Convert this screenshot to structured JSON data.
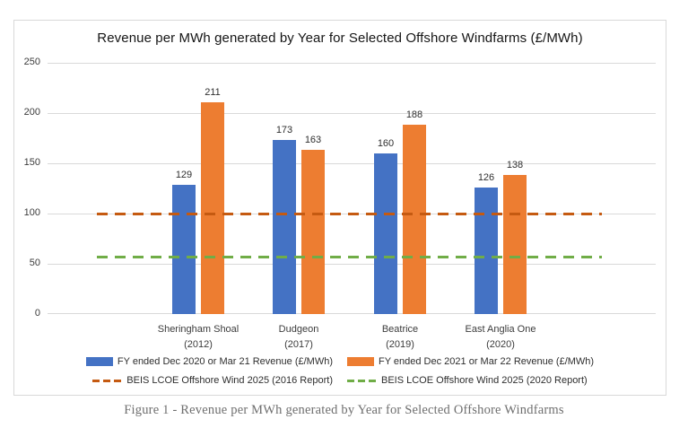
{
  "caption": "Figure 1 - Revenue per MWh generated by Year for Selected Offshore Windfarms",
  "colors": {
    "series_blue": "#4472C4",
    "series_orange": "#ED7D31",
    "refline_dark_orange": "#C55A11",
    "refline_green": "#70AD47",
    "gridline": "#d9d9d9",
    "card_border": "#d9d9d9"
  },
  "chart_data": {
    "type": "bar",
    "title": "Revenue per MWh generated by Year for Selected Offshore Windfarms (£/MWh)",
    "xlabel": "",
    "ylabel": "",
    "ylim": [
      0,
      250
    ],
    "yticks": [
      0,
      50,
      100,
      150,
      200,
      250
    ],
    "grid": true,
    "legend_position": "bottom",
    "categories": [
      {
        "label": "Sheringham Shoal",
        "sublabel": "(2012)"
      },
      {
        "label": "Dudgeon",
        "sublabel": "(2017)"
      },
      {
        "label": "Beatrice",
        "sublabel": "(2019)"
      },
      {
        "label": "East Anglia One",
        "sublabel": "(2020)"
      }
    ],
    "series": [
      {
        "name": "FY ended Dec 2020 or Mar 21 Revenue (£/MWh)",
        "color": "#4472C4",
        "values": [
          129,
          173,
          160,
          126
        ]
      },
      {
        "name": "FY ended Dec 2021 or Mar 22 Revenue (£/MWh)",
        "color": "#ED7D31",
        "values": [
          211,
          163,
          188,
          138
        ]
      }
    ],
    "ref_lines": [
      {
        "name": "BEIS LCOE Offshore Wind 2025 (2016 Report)",
        "value": 100,
        "color": "#C55A11",
        "style": "dashed"
      },
      {
        "name": "BEIS LCOE Offshore Wind 2025 (2020 Report)",
        "value": 57,
        "color": "#70AD47",
        "style": "dashed"
      }
    ]
  }
}
